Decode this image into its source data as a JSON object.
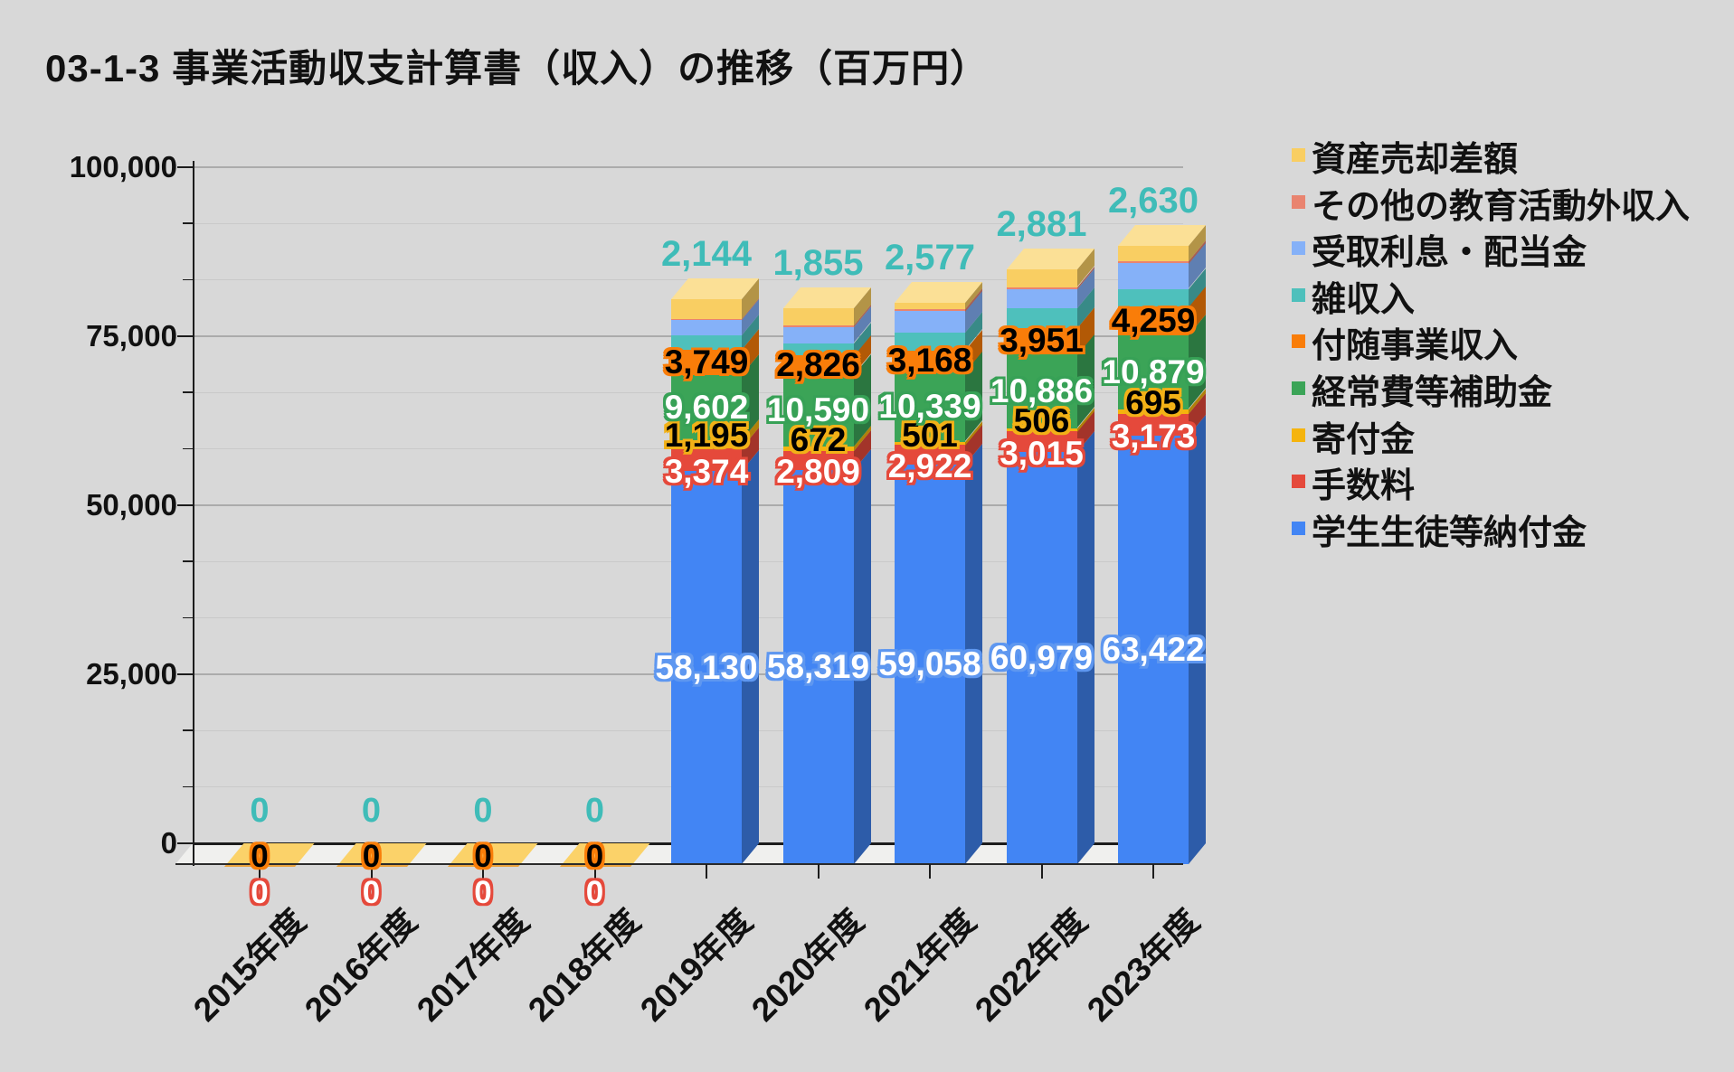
{
  "title": "03-1-3 事業活動収支計算書（収入）の推移（百万円）",
  "colors": {
    "background": "#d8d8d8",
    "axis": "#1c1c1c",
    "gridline_major": "#ababab",
    "gridline_minor": "#c9c9c9",
    "floor": "#f0f0ee",
    "zero_bar_fill": "#fbd269",
    "misc_label_teal": "#3fbcb8"
  },
  "y_axis": {
    "min": 0,
    "max": 100000,
    "major_step": 25000,
    "minor_step": 8333,
    "tick_labels": [
      "0",
      "25,000",
      "50,000",
      "75,000",
      "100,000"
    ]
  },
  "chart_data": {
    "type": "bar",
    "stacked": true,
    "effect_3d": true,
    "title": "03-1-3 事業活動収支計算書（収入）の推移（百万円）",
    "unit": "百万円",
    "ylabel": "",
    "xlabel": "",
    "ylim": [
      0,
      100000
    ],
    "grid": true,
    "legend_position": "right",
    "categories": [
      "2015年度",
      "2016年度",
      "2017年度",
      "2018年度",
      "2019年度",
      "2020年度",
      "2021年度",
      "2022年度",
      "2023年度"
    ],
    "series_bottom_to_top": [
      {
        "id": "tuition",
        "name": "学生生徒等納付金",
        "color": "#4285f4",
        "side_color": "#2d5ca9",
        "top_color": "#79a7f8",
        "labeled": true,
        "label_text_color": "#ffffff",
        "label_outline_color": "#5e97f0",
        "label_dy": 0,
        "values": [
          0,
          0,
          0,
          0,
          58130,
          58319,
          59058,
          60979,
          63422
        ]
      },
      {
        "id": "fees",
        "name": "手数料",
        "color": "#e5493b",
        "side_color": "#a3342a",
        "top_color": "#ee7a6f",
        "labeled": true,
        "label_text_color": "#ffffff",
        "label_outline_color": "#e5493b",
        "label_dy": 13,
        "values": [
          0,
          0,
          0,
          0,
          3374,
          2809,
          2922,
          3015,
          3173
        ]
      },
      {
        "id": "donations",
        "name": "寄付金",
        "color": "#f5b40d",
        "side_color": "#b08109",
        "top_color": "#f8cc55",
        "labeled": true,
        "label_text_color": "#000000",
        "label_outline_color": "#f2b117",
        "label_dy": -9,
        "values": [
          0,
          0,
          0,
          0,
          1195,
          672,
          501,
          506,
          695
        ]
      },
      {
        "id": "subsidies",
        "name": "経常費等補助金",
        "color": "#3ba457",
        "side_color": "#2b7640",
        "top_color": "#6cc285",
        "labeled": true,
        "label_text_color": "#ffffff",
        "label_outline_color": "#37a156",
        "label_dy": 0,
        "values": [
          0,
          0,
          0,
          0,
          9602,
          10590,
          10339,
          10886,
          10879
        ]
      },
      {
        "id": "ancillary",
        "name": "付随事業収入",
        "color": "#f97d09",
        "side_color": "#b25906",
        "top_color": "#fba34d",
        "labeled": true,
        "label_text_color": "#000000",
        "label_outline_color": "#f97d09",
        "label_dy": 0,
        "values": [
          0,
          0,
          0,
          0,
          3749,
          2826,
          3168,
          3951,
          4259
        ]
      },
      {
        "id": "misc",
        "name": "雑収入",
        "color": "#4ec0bc",
        "side_color": "#388a87",
        "top_color": "#80d4d0",
        "labeled": true,
        "label_position": "above_bar",
        "label_text_color": "#3fbcb8",
        "label_outline_color": null,
        "label_dy": 0,
        "values": [
          0,
          0,
          0,
          0,
          2144,
          1855,
          2577,
          2881,
          2630
        ]
      },
      {
        "id": "interest",
        "name": "受取利息・配当金",
        "color": "#85b1f8",
        "side_color": "#5f7fb2",
        "top_color": "#aecbfa",
        "labeled": false,
        "estimated": true,
        "values": [
          0,
          0,
          0,
          0,
          2300,
          2300,
          3200,
          2800,
          3800
        ]
      },
      {
        "id": "other-edu",
        "name": "その他の教育活動外収入",
        "color": "#e98470",
        "side_color": "#a85f51",
        "top_color": "#f0a99a",
        "labeled": false,
        "estimated": true,
        "values": [
          0,
          0,
          0,
          0,
          150,
          300,
          350,
          300,
          350
        ]
      },
      {
        "id": "asset-sale",
        "name": "資産売却差額",
        "color": "#f9ce62",
        "side_color": "#b39447",
        "top_color": "#fbe096",
        "labeled": false,
        "estimated": true,
        "values": [
          0,
          0,
          0,
          0,
          2900,
          2600,
          900,
          2600,
          2300
        ]
      }
    ],
    "zero_category_visible_labels": [
      "misc",
      "ancillary",
      "fees"
    ]
  }
}
